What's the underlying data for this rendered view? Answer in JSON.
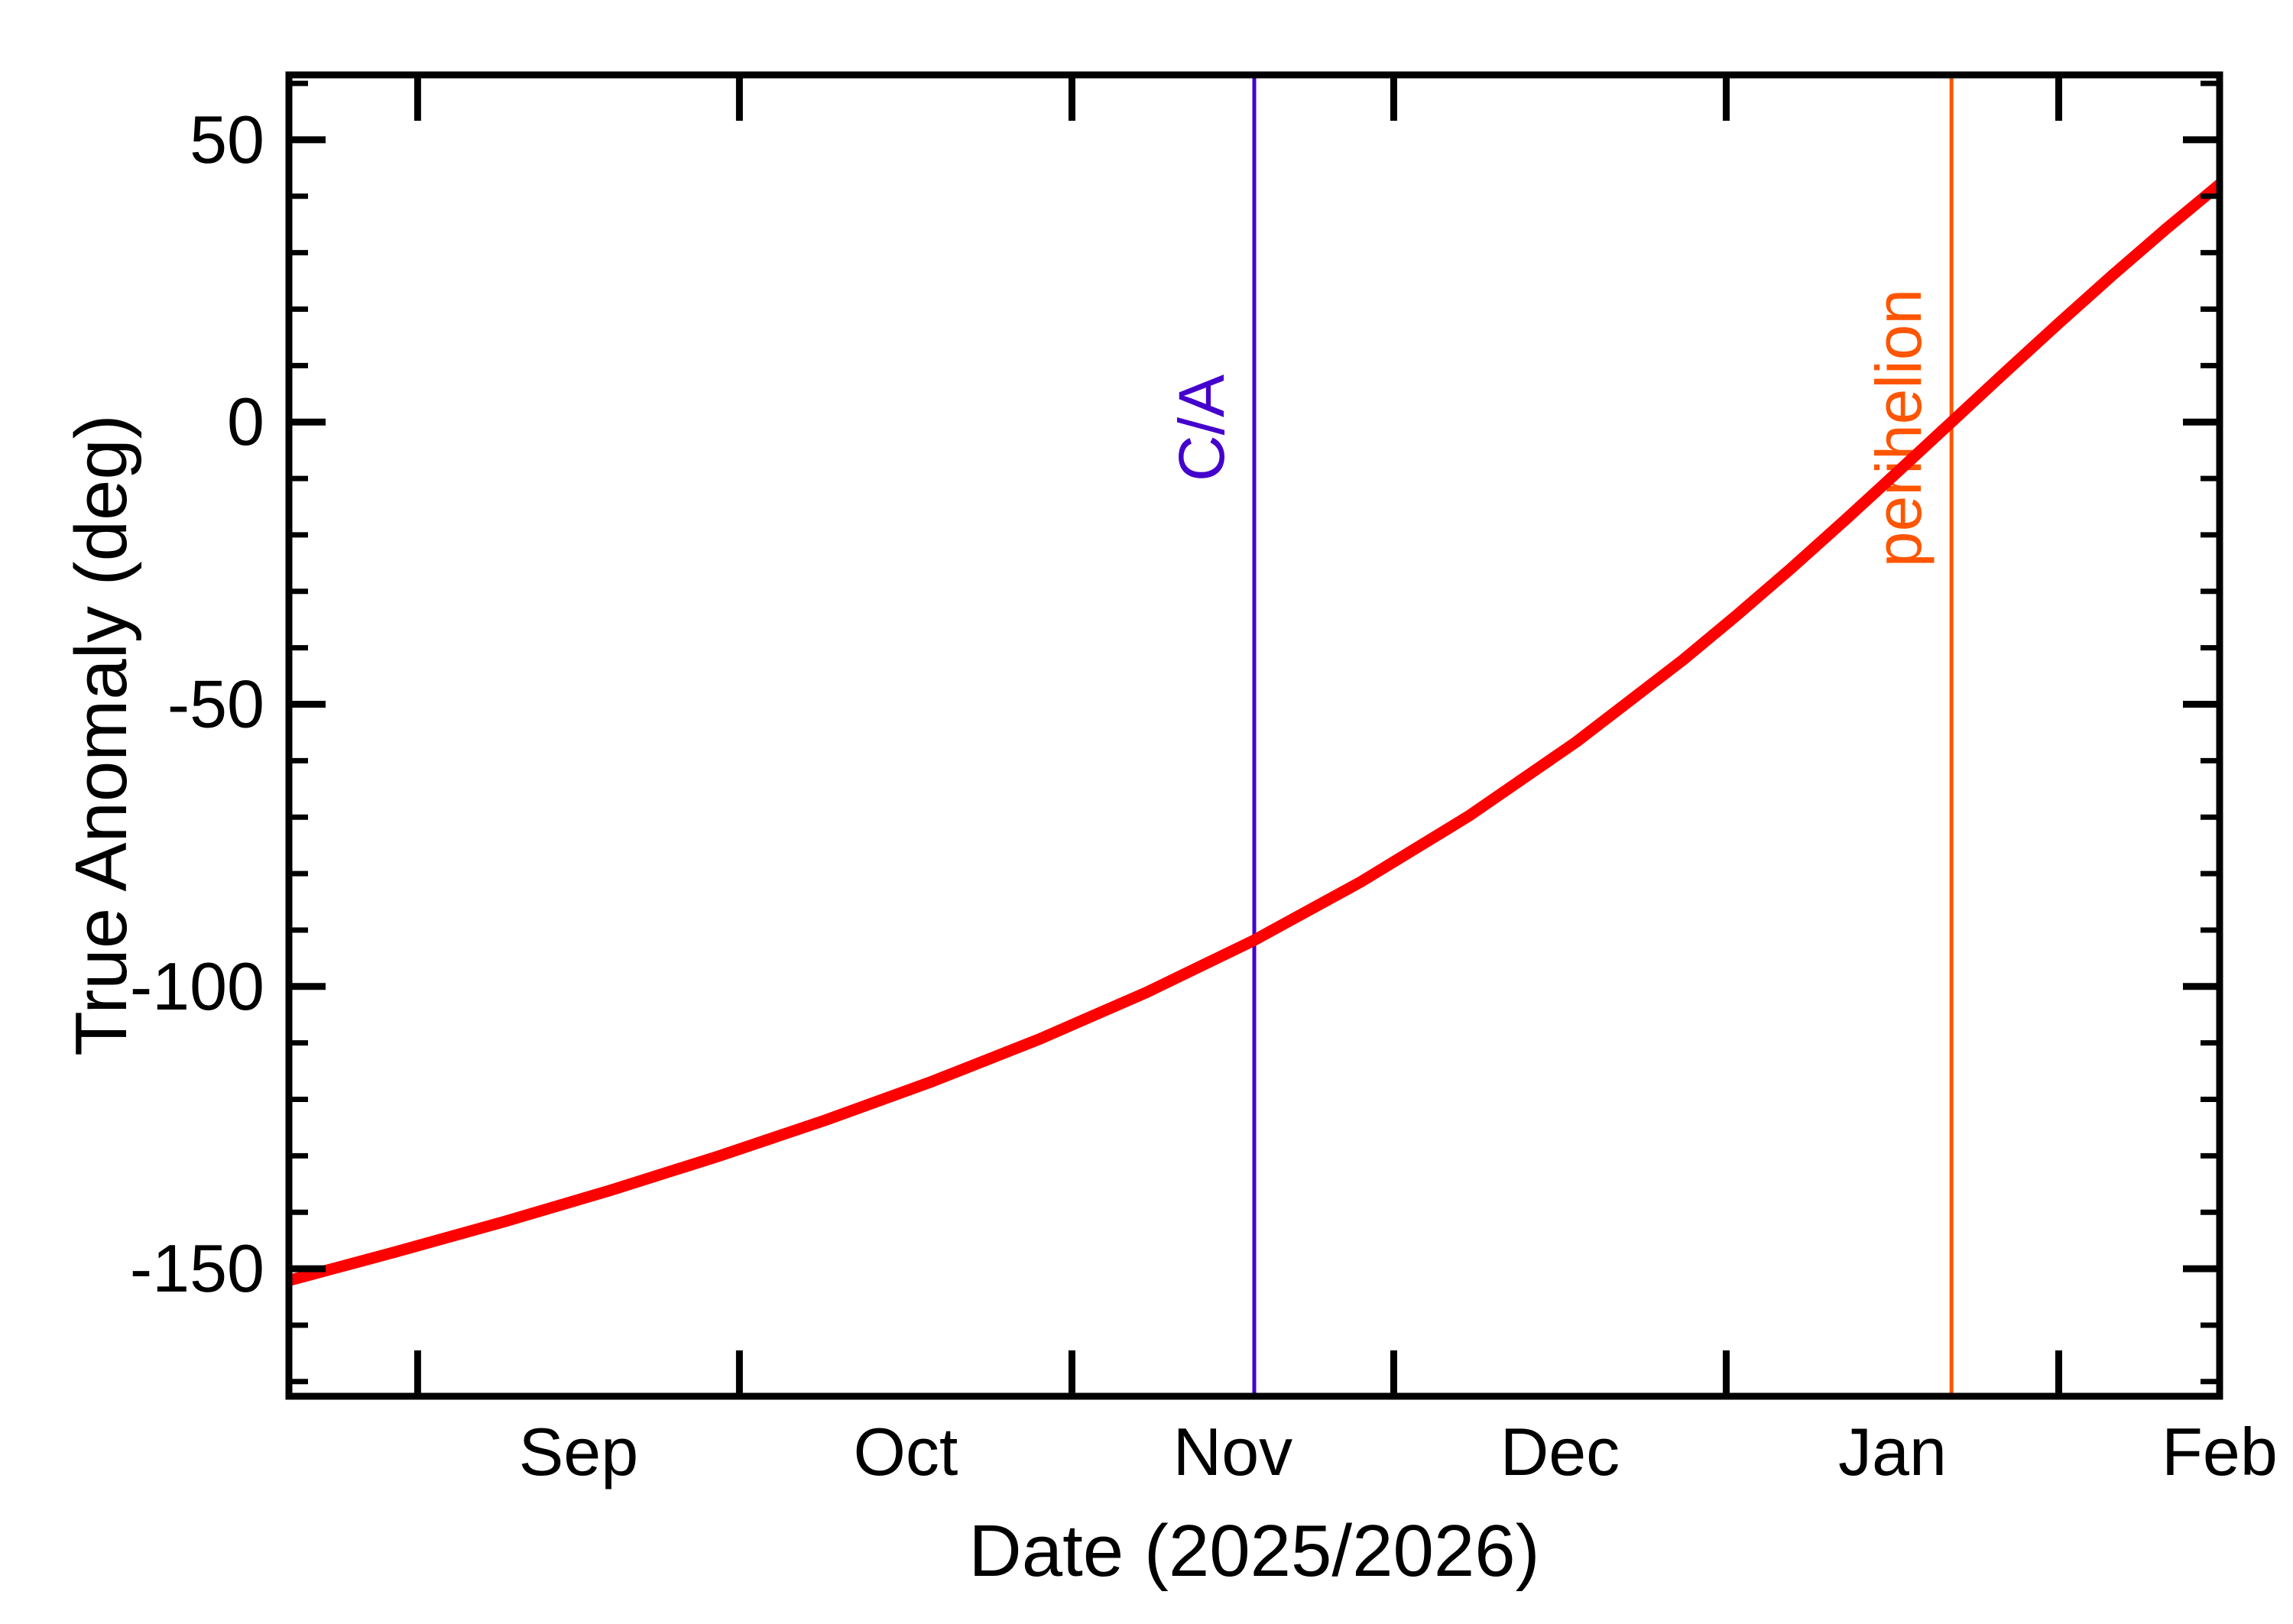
{
  "figure": {
    "background_color": "#FFFFFF",
    "axis_color": "#000000"
  },
  "chart_data": {
    "type": "line",
    "title": "",
    "xlabel": "Date (2025/2026)",
    "ylabel": "True Anomaly (deg)",
    "grid": false,
    "legend": "none",
    "x_axis": {
      "xlim_days": [
        0,
        180
      ],
      "month_start_tick_days": [
        12,
        42,
        73,
        103,
        134,
        165
      ],
      "month_labels": [
        {
          "label": "Sep",
          "day": 27
        },
        {
          "label": "Oct",
          "day": 57.5
        },
        {
          "label": "Nov",
          "day": 88
        },
        {
          "label": "Dec",
          "day": 118.5
        },
        {
          "label": "Jan",
          "day": 149.5
        },
        {
          "label": "Feb",
          "day": 180
        }
      ]
    },
    "y_axis": {
      "ylim": [
        -172.6,
        61.5
      ],
      "major_tick_values": [
        50,
        0,
        -50,
        -100,
        -150
      ],
      "major_tick_labels": [
        "50",
        "0",
        "-50",
        "-100",
        "-150"
      ],
      "minor_tick_step": 10
    },
    "series": [
      {
        "name": "true-anomaly-vs-date",
        "color": "#FF0000",
        "stroke_width": 15,
        "points_day_deg": [
          [
            0,
            -152.1
          ],
          [
            10,
            -147.0
          ],
          [
            20,
            -141.7
          ],
          [
            30,
            -136.1
          ],
          [
            40,
            -130.1
          ],
          [
            50,
            -123.7
          ],
          [
            60,
            -116.8
          ],
          [
            70,
            -109.3
          ],
          [
            80,
            -101.0
          ],
          [
            90,
            -91.8
          ],
          [
            100,
            -81.4
          ],
          [
            110,
            -69.8
          ],
          [
            120,
            -56.7
          ],
          [
            130,
            -42.1
          ],
          [
            135,
            -34.2
          ],
          [
            140,
            -26.0
          ],
          [
            145,
            -17.5
          ],
          [
            150,
            -8.8
          ],
          [
            155,
            0.0
          ],
          [
            160,
            8.8
          ],
          [
            165,
            17.5
          ],
          [
            170,
            26.0
          ],
          [
            175,
            34.2
          ],
          [
            180,
            42.1
          ]
        ]
      }
    ],
    "markers": [
      {
        "label": "C/A",
        "day": 90,
        "color": "#4400CC",
        "value_at_crossing_deg": -91.8
      },
      {
        "label": "perihelion",
        "day": 155,
        "color": "#FF5500",
        "value_at_crossing_deg": 0
      }
    ]
  }
}
